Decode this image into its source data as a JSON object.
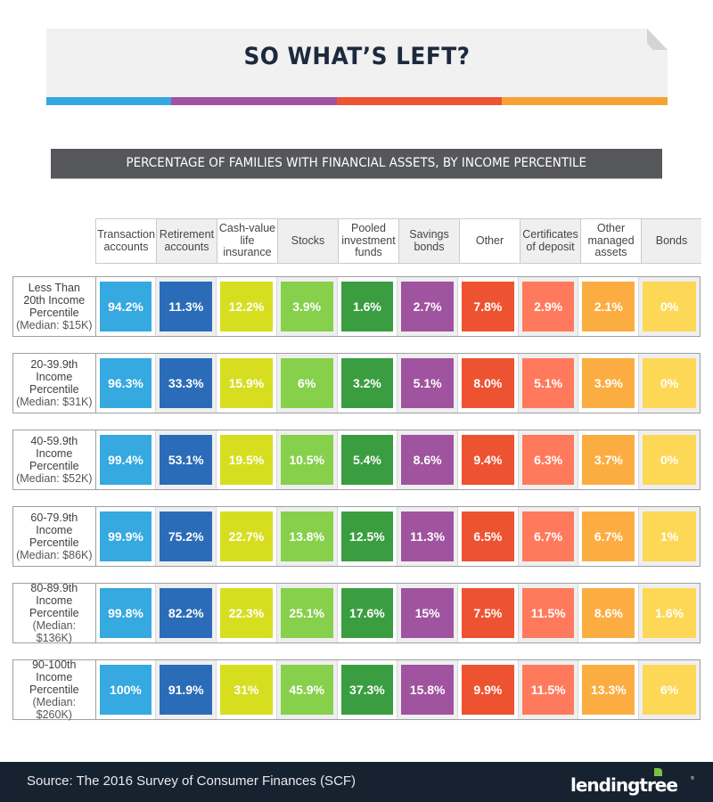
{
  "banner": {
    "title": "SO WHAT’S LEFT?",
    "stripe_colors": [
      "#35a8e0",
      "#9f53a0",
      "#ee5332",
      "#f6a334"
    ]
  },
  "subtitle": "PERCENTAGE OF FAMILIES WITH FINANCIAL ASSETS, BY INCOME PERCENTILE",
  "chart_data": {
    "type": "table",
    "title": "PERCENTAGE OF FAMILIES WITH FINANCIAL ASSETS, BY INCOME PERCENTILE",
    "columns": [
      {
        "label": "Transaction accounts",
        "lines": [
          "Transaction",
          "accounts"
        ],
        "color": "#35a9e0"
      },
      {
        "label": "Retirement accounts",
        "lines": [
          "Retirement",
          "accounts"
        ],
        "color": "#2b6cb8"
      },
      {
        "label": "Cash-value life insurance",
        "lines": [
          "Cash-value",
          "life",
          "insurance"
        ],
        "color": "#d7de20"
      },
      {
        "label": "Stocks",
        "lines": [
          "Stocks"
        ],
        "color": "#86d04c"
      },
      {
        "label": "Pooled investment funds",
        "lines": [
          "Pooled",
          "investment",
          "funds"
        ],
        "color": "#3a9e40"
      },
      {
        "label": "Savings bonds",
        "lines": [
          "Savings",
          "bonds"
        ],
        "color": "#a0539e"
      },
      {
        "label": "Other",
        "lines": [
          "Other"
        ],
        "color": "#ee5331"
      },
      {
        "label": "Certificates of deposit",
        "lines": [
          "Certificates",
          "of deposit"
        ],
        "color": "#ff7a5c"
      },
      {
        "label": "Other managed assets",
        "lines": [
          "Other",
          "managed",
          "assets"
        ],
        "color": "#fcad42"
      },
      {
        "label": "Bonds",
        "lines": [
          "Bonds"
        ],
        "color": "#fdd857"
      }
    ],
    "rows": [
      {
        "label_lines": [
          "Less Than",
          "20th Income",
          "Percentile"
        ],
        "median": "(Median: $15K)",
        "values": [
          "94.2%",
          "11.3%",
          "12.2%",
          "3.9%",
          "1.6%",
          "2.7%",
          "7.8%",
          "2.9%",
          "2.1%",
          "0%"
        ]
      },
      {
        "label_lines": [
          "20-39.9th",
          "Income",
          "Percentile"
        ],
        "median": "(Median: $31K)",
        "values": [
          "96.3%",
          "33.3%",
          "15.9%",
          "6%",
          "3.2%",
          "5.1%",
          "8.0%",
          "5.1%",
          "3.9%",
          "0%"
        ]
      },
      {
        "label_lines": [
          "40-59.9th",
          "Income",
          "Percentile"
        ],
        "median": "(Median: $52K)",
        "values": [
          "99.4%",
          "53.1%",
          "19.5%",
          "10.5%",
          "5.4%",
          "8.6%",
          "9.4%",
          "6.3%",
          "3.7%",
          "0%"
        ]
      },
      {
        "label_lines": [
          "60-79.9th",
          "Income",
          "Percentile"
        ],
        "median": "(Median: $86K)",
        "values": [
          "99.9%",
          "75.2%",
          "22.7%",
          "13.8%",
          "12.5%",
          "11.3%",
          "6.5%",
          "6.7%",
          "6.7%",
          "1%"
        ]
      },
      {
        "label_lines": [
          "80-89.9th",
          "Income",
          "Percentile"
        ],
        "median": "(Median: $136K)",
        "values": [
          "99.8%",
          "82.2%",
          "22.3%",
          "25.1%",
          "17.6%",
          "15%",
          "7.5%",
          "11.5%",
          "8.6%",
          "1.6%"
        ]
      },
      {
        "label_lines": [
          "90-100th",
          "Income",
          "Percentile"
        ],
        "median": "(Median: $260K)",
        "values": [
          "100%",
          "91.9%",
          "31%",
          "45.9%",
          "37.3%",
          "15.8%",
          "9.9%",
          "11.5%",
          "13.3%",
          "6%"
        ]
      }
    ]
  },
  "footer": {
    "source": "Source: The 2016 Survey of Consumer Finances (SCF)",
    "logo_text": "lendingtree",
    "logo_reg": "®"
  }
}
